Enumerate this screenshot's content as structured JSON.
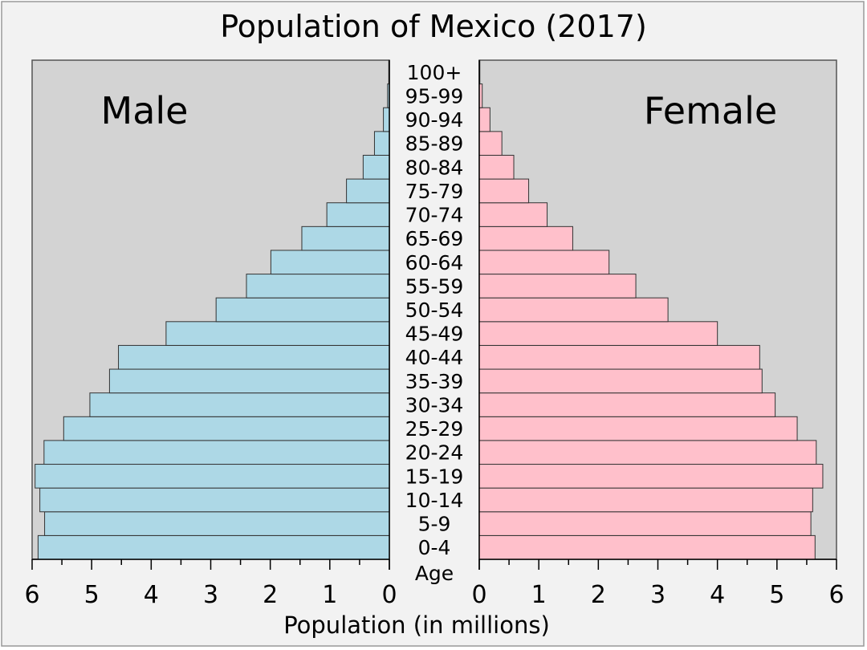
{
  "chart_data": {
    "type": "bar",
    "subtype": "population-pyramid",
    "title": "Population of Mexico (2017)",
    "xlabel": "Population (in millions)",
    "ylabel": "Age",
    "xlim": [
      0,
      6
    ],
    "ticks": [
      0,
      1,
      2,
      3,
      4,
      5,
      6
    ],
    "tick_labels": [
      "0",
      "1",
      "2",
      "3",
      "4",
      "5",
      "6"
    ],
    "categories": [
      "0-4",
      "5-9",
      "10-14",
      "15-19",
      "20-24",
      "25-29",
      "30-34",
      "35-39",
      "40-44",
      "45-49",
      "50-54",
      "55-59",
      "60-64",
      "65-69",
      "70-74",
      "75-79",
      "80-84",
      "85-89",
      "90-94",
      "95-99",
      "100+"
    ],
    "series": [
      {
        "name": "Male",
        "color": "#add8e6",
        "values": [
          5.9,
          5.79,
          5.87,
          5.95,
          5.8,
          5.47,
          5.03,
          4.7,
          4.55,
          3.75,
          2.91,
          2.4,
          1.99,
          1.47,
          1.05,
          0.72,
          0.44,
          0.25,
          0.1,
          0.03,
          0.01
        ]
      },
      {
        "name": "Female",
        "color": "#ffc0cb",
        "values": [
          5.64,
          5.57,
          5.6,
          5.77,
          5.66,
          5.34,
          4.97,
          4.75,
          4.71,
          4.0,
          3.17,
          2.63,
          2.18,
          1.57,
          1.14,
          0.83,
          0.58,
          0.38,
          0.18,
          0.05,
          0.01
        ]
      }
    ],
    "grid": false,
    "background_color": "#d3d3d3"
  }
}
